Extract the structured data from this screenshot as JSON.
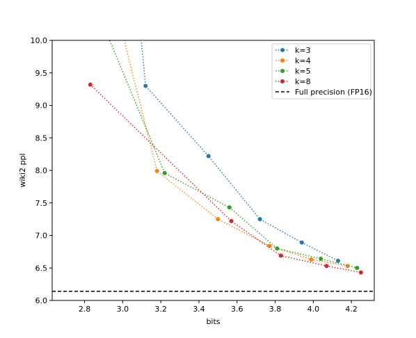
{
  "chart_data": {
    "type": "line",
    "xlabel": "bits",
    "ylabel": "wiki2 ppl",
    "xlim": [
      2.63,
      4.32
    ],
    "ylim": [
      6.0,
      10.0
    ],
    "xticks": [
      2.8,
      3.0,
      3.2,
      3.4,
      3.6,
      3.8,
      4.0,
      4.2
    ],
    "xtick_labels": [
      "2.8",
      "3.0",
      "3.2",
      "3.4",
      "3.6",
      "3.8",
      "4.0",
      "4.2"
    ],
    "yticks": [
      6.0,
      6.5,
      7.0,
      7.5,
      8.0,
      8.5,
      9.0,
      9.5,
      10.0
    ],
    "ytick_labels": [
      "6.0",
      "6.5",
      "7.0",
      "7.5",
      "8.0",
      "8.5",
      "9.0",
      "9.5",
      "10.0"
    ],
    "grid": false,
    "legend_position": "top-right",
    "series": [
      {
        "name": "k=3",
        "color": "#1f77b4",
        "style": "dotted",
        "points": [
          [
            3.05,
            11.5
          ],
          [
            3.12,
            9.3
          ],
          [
            3.45,
            8.22
          ],
          [
            3.72,
            7.25
          ],
          [
            3.94,
            6.89
          ],
          [
            4.13,
            6.61
          ]
        ]
      },
      {
        "name": "k=4",
        "color": "#ff7f0e",
        "style": "dotted",
        "points": [
          [
            2.88,
            11.5
          ],
          [
            3.18,
            7.99
          ],
          [
            3.5,
            7.25
          ],
          [
            3.77,
            6.84
          ],
          [
            3.99,
            6.63
          ],
          [
            4.18,
            6.53
          ]
        ]
      },
      {
        "name": "k=5",
        "color": "#2ca02c",
        "style": "dotted",
        "points": [
          [
            2.72,
            11.5
          ],
          [
            3.22,
            7.96
          ],
          [
            3.56,
            7.43
          ],
          [
            3.81,
            6.8
          ],
          [
            4.04,
            6.64
          ],
          [
            4.23,
            6.5
          ]
        ]
      },
      {
        "name": "k=8",
        "color": "#d62728",
        "style": "dotted",
        "points": [
          [
            2.83,
            9.32
          ],
          [
            3.57,
            7.22
          ],
          [
            3.83,
            6.69
          ],
          [
            4.07,
            6.53
          ],
          [
            4.25,
            6.43
          ]
        ]
      }
    ],
    "reference_line": {
      "name": "Full precision (FP16)",
      "y": 6.14,
      "color": "#000000",
      "style": "dashed"
    }
  }
}
